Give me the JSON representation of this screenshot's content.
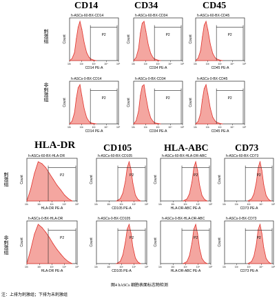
{
  "markers": [
    "CD14",
    "CD34",
    "CD45",
    "HLA-DR",
    "CD105",
    "HLA-ABC",
    "CD73"
  ],
  "row_labels": [
    "刺激组",
    "非刺激组",
    "刺激组",
    "非刺激组"
  ],
  "figure_caption": "图4   hASCs 细胞表面标志物检测",
  "note": "注：上排为刺激组；下排为未刺激组",
  "chart_data": [
    {
      "type": "area",
      "title": "h-ASCs-60-BX-CD14",
      "xlabel": "CD14 PE-A",
      "ylabel": "Count",
      "gate_label": "P2",
      "x_log_range": [
        1,
        5
      ],
      "xticks": [
        "10¹",
        "10²",
        "10³",
        "10⁴",
        "10⁵"
      ],
      "x": [
        1.0,
        1.2,
        1.4,
        1.55,
        1.7,
        1.85,
        2.0,
        2.2,
        2.4,
        2.6,
        2.8,
        3.0,
        3.2
      ],
      "values": [
        0,
        5,
        20,
        55,
        85,
        100,
        80,
        45,
        20,
        8,
        3,
        1,
        0
      ]
    },
    {
      "type": "area",
      "title": "h-ASCs-60-BX-CD34",
      "xlabel": "CD34 PE-A",
      "ylabel": "Count",
      "gate_label": "P2",
      "x_log_range": [
        1,
        5
      ],
      "xticks": [
        "10¹",
        "10²",
        "10³",
        "10⁴",
        "10⁵"
      ],
      "x": [
        1.0,
        1.2,
        1.4,
        1.55,
        1.7,
        1.85,
        2.0,
        2.2,
        2.4,
        2.6,
        2.8,
        3.0,
        3.2
      ],
      "values": [
        0,
        8,
        30,
        70,
        95,
        100,
        75,
        40,
        18,
        7,
        3,
        1,
        0
      ]
    },
    {
      "type": "area",
      "title": "h-ASCs-60-BX-CD45",
      "xlabel": "CD45 PE-A",
      "ylabel": "Count",
      "gate_label": "P2",
      "x_log_range": [
        1,
        5
      ],
      "xticks": [
        "10¹",
        "10²",
        "10³",
        "10⁴",
        "10⁵"
      ],
      "x": [
        1.0,
        1.2,
        1.4,
        1.55,
        1.7,
        1.85,
        2.0,
        2.2,
        2.4,
        2.6,
        2.8,
        3.0,
        3.2
      ],
      "values": [
        0,
        6,
        25,
        60,
        90,
        100,
        78,
        42,
        18,
        7,
        3,
        1,
        0
      ]
    },
    {
      "type": "area",
      "title": "h-ASCs-0-BX-CD14",
      "xlabel": "CD14 PE-A",
      "ylabel": "Count",
      "gate_label": "P2",
      "x_log_range": [
        1,
        5
      ],
      "xticks": [
        "10¹",
        "10²",
        "10³",
        "10⁴",
        "10⁵"
      ],
      "x": [
        1.0,
        1.2,
        1.4,
        1.55,
        1.7,
        1.85,
        2.0,
        2.2,
        2.4,
        2.6,
        2.8,
        3.0,
        3.2
      ],
      "values": [
        0,
        7,
        28,
        65,
        92,
        100,
        72,
        38,
        16,
        6,
        2,
        1,
        0
      ]
    },
    {
      "type": "area",
      "title": "h-ASCs-0-BX-CD34",
      "xlabel": "CD34 PE-A",
      "ylabel": "Count",
      "gate_label": "P2",
      "x_log_range": [
        1,
        5
      ],
      "xticks": [
        "10¹",
        "10²",
        "10³",
        "10⁴",
        "10⁵"
      ],
      "x": [
        1.0,
        1.2,
        1.4,
        1.55,
        1.7,
        1.85,
        2.0,
        2.2,
        2.4,
        2.6,
        2.8,
        3.0,
        3.2
      ],
      "values": [
        0,
        8,
        32,
        72,
        96,
        100,
        70,
        36,
        15,
        6,
        2,
        1,
        0
      ]
    },
    {
      "type": "area",
      "title": "h-ASCs-0-BX-CD45",
      "xlabel": "CD45 PE-A",
      "ylabel": "Count",
      "gate_label": "P2",
      "x_log_range": [
        1,
        5
      ],
      "xticks": [
        "10¹",
        "10²",
        "10³",
        "10⁴",
        "10⁵"
      ],
      "x": [
        1.0,
        1.2,
        1.4,
        1.55,
        1.7,
        1.85,
        2.0,
        2.2,
        2.4,
        2.6,
        2.8,
        3.0,
        3.2
      ],
      "values": [
        0,
        6,
        26,
        62,
        90,
        100,
        76,
        40,
        17,
        7,
        3,
        1,
        0
      ]
    },
    {
      "type": "area",
      "title": "h-ASCs-60-BX-HLA-DR",
      "xlabel": "HLA-DR PE-A",
      "ylabel": "Count",
      "gate_label": "P2",
      "x_log_range": [
        1,
        5
      ],
      "xticks": [
        "10¹",
        "10²",
        "10³",
        "10⁴",
        "10⁵"
      ],
      "x": [
        1.0,
        1.3,
        1.6,
        1.9,
        2.2,
        2.5,
        2.8,
        3.1,
        3.4,
        3.7,
        4.0,
        4.3,
        4.6
      ],
      "values": [
        0,
        30,
        70,
        100,
        95,
        85,
        70,
        55,
        40,
        28,
        15,
        6,
        0
      ]
    },
    {
      "type": "area",
      "title": "h-ASCs-60-BX-CD105",
      "xlabel": "CD105 PE-A",
      "ylabel": "Count",
      "gate_label": "P2",
      "x_log_range": [
        1,
        5
      ],
      "xticks": [
        "10¹",
        "10²",
        "10³",
        "10⁴",
        "10⁵"
      ],
      "x": [
        2.6,
        2.9,
        3.1,
        3.3,
        3.45,
        3.6,
        3.75,
        3.9,
        4.1,
        4.3,
        4.5
      ],
      "values": [
        0,
        6,
        20,
        50,
        85,
        100,
        80,
        45,
        15,
        4,
        0
      ]
    },
    {
      "type": "area",
      "title": "h-ASCs-60-BX-HLA-DR-ABC",
      "xlabel": "HLA-DR-ABC PE-A",
      "ylabel": "Count",
      "gate_label": "P2",
      "x_log_range": [
        1,
        5
      ],
      "xticks": [
        "10¹",
        "10²",
        "10³",
        "10⁴",
        "10⁵"
      ],
      "x": [
        2.8,
        3.1,
        3.3,
        3.5,
        3.65,
        3.8,
        3.95,
        4.1,
        4.3,
        4.5,
        4.7
      ],
      "values": [
        0,
        5,
        18,
        48,
        85,
        100,
        78,
        42,
        14,
        4,
        0
      ]
    },
    {
      "type": "area",
      "title": "h-ASCs-60-BX-CD73",
      "xlabel": "CD73 PE-A",
      "ylabel": "Count",
      "gate_label": "P2",
      "x_log_range": [
        1,
        5
      ],
      "xticks": [
        "10¹",
        "10²",
        "10³",
        "10⁴",
        "10⁵"
      ],
      "x": [
        2.9,
        3.2,
        3.4,
        3.6,
        3.75,
        3.9,
        4.05,
        4.2,
        4.4,
        4.6,
        4.8
      ],
      "values": [
        0,
        5,
        18,
        48,
        85,
        100,
        78,
        42,
        14,
        4,
        0
      ]
    },
    {
      "type": "area",
      "title": "h-ASCs-0-BX-HLA-DR",
      "xlabel": "HLA-DR PE-A",
      "ylabel": "Count",
      "gate_label": "P2",
      "x_log_range": [
        1,
        5
      ],
      "xticks": [
        "10¹",
        "10²",
        "10³",
        "10⁴",
        "10⁵"
      ],
      "x": [
        1.0,
        1.3,
        1.6,
        1.9,
        2.2,
        2.5,
        2.8,
        3.1,
        3.4,
        3.7,
        4.0,
        4.3,
        4.6
      ],
      "values": [
        0,
        35,
        75,
        100,
        92,
        80,
        66,
        50,
        36,
        24,
        13,
        5,
        0
      ]
    },
    {
      "type": "area",
      "title": "h-ASCs-0-BX-CD105",
      "xlabel": "CD105 PE-A",
      "ylabel": "Count",
      "gate_label": "P2",
      "x_log_range": [
        1,
        5
      ],
      "xticks": [
        "10¹",
        "10²",
        "10³",
        "10⁴",
        "10⁵"
      ],
      "x": [
        2.6,
        2.9,
        3.1,
        3.3,
        3.45,
        3.6,
        3.75,
        3.9,
        4.1,
        4.3,
        4.5
      ],
      "values": [
        0,
        6,
        22,
        55,
        88,
        100,
        78,
        42,
        14,
        4,
        0
      ]
    },
    {
      "type": "area",
      "title": "h-ASCs-0-BX-HLA-DR-ABC",
      "xlabel": "HLA-DR-ABC PE-A",
      "ylabel": "Count",
      "gate_label": "P2",
      "x_log_range": [
        1,
        5
      ],
      "xticks": [
        "10¹",
        "10²",
        "10³",
        "10⁴",
        "10⁵"
      ],
      "x": [
        2.8,
        3.1,
        3.3,
        3.5,
        3.65,
        3.8,
        3.95,
        4.1,
        4.3,
        4.5,
        4.7
      ],
      "values": [
        0,
        5,
        20,
        52,
        88,
        100,
        76,
        40,
        13,
        4,
        0
      ]
    },
    {
      "type": "area",
      "title": "h-ASCs-0-BX-CD73",
      "xlabel": "CD73 PE-A",
      "ylabel": "Count",
      "gate_label": "P2",
      "x_log_range": [
        1,
        5
      ],
      "xticks": [
        "10¹",
        "10²",
        "10³",
        "10⁴",
        "10⁵"
      ],
      "x": [
        2.9,
        3.2,
        3.4,
        3.6,
        3.75,
        3.9,
        4.05,
        4.2,
        4.4,
        4.6,
        4.8
      ],
      "values": [
        0,
        5,
        19,
        50,
        87,
        100,
        77,
        41,
        13,
        4,
        0
      ]
    }
  ],
  "colors": {
    "fill": "#f4a6a0",
    "line": "#e0302a",
    "axis": "#222222"
  }
}
